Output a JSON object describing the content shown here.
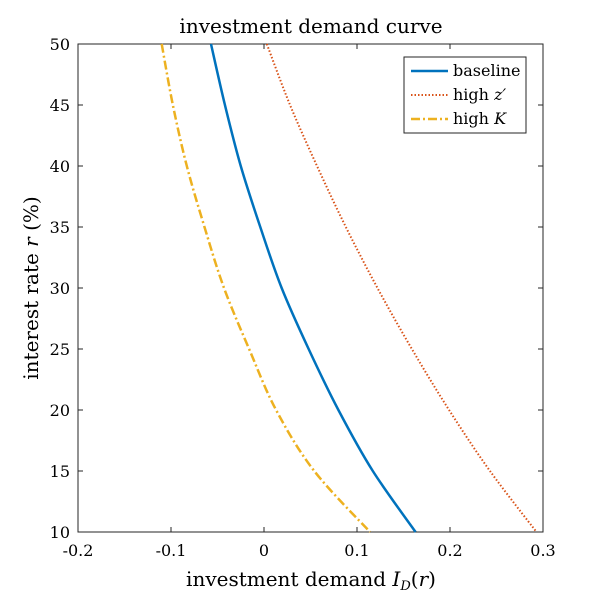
{
  "chart_data": {
    "type": "line",
    "title": "investment demand curve",
    "xlabel": "investment demand I_D(r)",
    "ylabel": "interest rate r (%)",
    "xlim": [
      -0.2,
      0.3
    ],
    "ylim": [
      10,
      50
    ],
    "x_ticks": [
      "-0.2",
      "-0.1",
      "0",
      "0.1",
      "0.2",
      "0.3"
    ],
    "y_ticks": [
      "10",
      "15",
      "20",
      "25",
      "30",
      "35",
      "40",
      "45",
      "50"
    ],
    "grid": false,
    "legend_position": "top-right",
    "series": [
      {
        "name": "baseline",
        "color": "#0072BD",
        "style": "solid",
        "points": [
          [
            -0.057,
            50
          ],
          [
            -0.042,
            45
          ],
          [
            -0.025,
            40
          ],
          [
            -0.004,
            35
          ],
          [
            0.019,
            30
          ],
          [
            0.048,
            25
          ],
          [
            0.08,
            20
          ],
          [
            0.117,
            15
          ],
          [
            0.163,
            10
          ]
        ]
      },
      {
        "name": "high z'",
        "color": "#D95319",
        "style": "dotted",
        "points": [
          [
            0.003,
            50
          ],
          [
            0.028,
            45
          ],
          [
            0.057,
            40
          ],
          [
            0.088,
            35
          ],
          [
            0.122,
            30
          ],
          [
            0.159,
            25
          ],
          [
            0.199,
            20
          ],
          [
            0.243,
            15
          ],
          [
            0.293,
            10
          ]
        ]
      },
      {
        "name": "high K",
        "color": "#EDB120",
        "style": "dashdot",
        "points": [
          [
            -0.11,
            50
          ],
          [
            -0.098,
            45
          ],
          [
            -0.083,
            40
          ],
          [
            -0.064,
            35
          ],
          [
            -0.043,
            30
          ],
          [
            -0.016,
            25
          ],
          [
            0.013,
            20
          ],
          [
            0.054,
            15
          ],
          [
            0.114,
            10
          ]
        ]
      }
    ]
  }
}
